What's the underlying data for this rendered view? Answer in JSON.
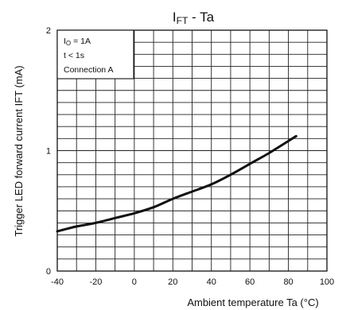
{
  "chart_data": {
    "type": "line",
    "title_main": "I",
    "title_sub": "FT",
    "title_rest": " - Ta",
    "xlabel": "Ambient temperature Ta (°C)",
    "ylabel": "Trigger LED forward current IFT (mA)",
    "xlim": [
      -40,
      100
    ],
    "ylim": [
      0,
      2
    ],
    "x_ticks": [
      -40,
      -20,
      0,
      20,
      40,
      60,
      80,
      100
    ],
    "x_tick_labels": [
      "-40",
      "-20",
      "0",
      "20",
      "40",
      "60",
      "80",
      "100"
    ],
    "y_ticks": [
      0,
      1,
      2
    ],
    "y_tick_labels": [
      "0",
      "1",
      "2"
    ],
    "x_minor_step": 10,
    "y_minor_step": 0.1,
    "grid": true,
    "annotation": {
      "line1_main": "I",
      "line1_sub": "O",
      "line1_rest": " = 1A",
      "line2": "t < 1s",
      "line3": "Connection A"
    },
    "series": [
      {
        "x": [
          -40,
          -30,
          -20,
          -10,
          0,
          10,
          20,
          30,
          40,
          50,
          60,
          70,
          80,
          84
        ],
        "y": [
          0.33,
          0.37,
          0.4,
          0.44,
          0.48,
          0.53,
          0.6,
          0.66,
          0.72,
          0.8,
          0.89,
          0.98,
          1.08,
          1.12
        ]
      }
    ]
  }
}
